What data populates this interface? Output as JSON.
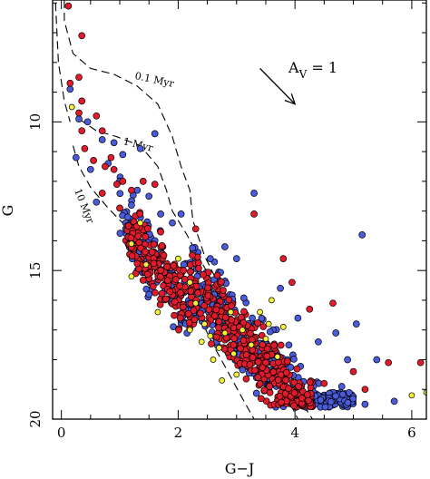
{
  "chart_data": {
    "type": "scatter",
    "xlabel": "G−J",
    "ylabel": "G",
    "xlim": [
      -0.15,
      6.25
    ],
    "ylim": [
      20,
      5.9
    ],
    "y_inverted": true,
    "x_ticks": [
      "0",
      "2",
      "4",
      "6"
    ],
    "y_ticks": [
      "10",
      "15",
      "20"
    ],
    "extinction_vector": {
      "label_main": "A",
      "label_sub": "V",
      "label_rest": " = 1",
      "from": [
        3.4,
        8.2
      ],
      "to": [
        4.0,
        9.4
      ]
    },
    "isochrones": [
      {
        "name": "0.1 Myr",
        "points": [
          [
            0.05,
            5.9
          ],
          [
            0.05,
            6.6
          ],
          [
            0.2,
            7.7
          ],
          [
            0.5,
            8.2
          ],
          [
            0.9,
            8.4
          ],
          [
            1.3,
            8.8
          ],
          [
            1.65,
            9.4
          ],
          [
            1.9,
            10.5
          ],
          [
            2.05,
            11.5
          ],
          [
            2.2,
            12.3
          ],
          [
            2.25,
            13.3
          ],
          [
            2.45,
            14.5
          ],
          [
            2.75,
            15.7
          ],
          [
            3.1,
            16.6
          ],
          [
            3.4,
            17.4
          ],
          [
            3.65,
            18.0
          ],
          [
            3.9,
            18.6
          ],
          [
            4.1,
            19.4
          ],
          [
            4.3,
            20.0
          ]
        ]
      },
      {
        "name": "1 Myr",
        "points": [
          [
            0.3,
            9.9
          ],
          [
            0.6,
            10.3
          ],
          [
            0.95,
            10.5
          ],
          [
            1.35,
            10.8
          ],
          [
            1.65,
            11.5
          ],
          [
            1.8,
            12.3
          ],
          [
            1.9,
            13.0
          ],
          [
            2.15,
            13.8
          ],
          [
            2.45,
            14.9
          ],
          [
            2.75,
            15.9
          ],
          [
            3.05,
            16.9
          ],
          [
            3.35,
            17.7
          ],
          [
            3.6,
            18.4
          ],
          [
            3.85,
            19.2
          ],
          [
            4.05,
            20.0
          ]
        ]
      },
      {
        "name": "10 Myr",
        "points": [
          [
            0.2,
            10.8
          ],
          [
            0.3,
            11.5
          ],
          [
            0.5,
            12.2
          ],
          [
            0.8,
            12.9
          ],
          [
            1.15,
            13.6
          ],
          [
            1.5,
            14.0
          ],
          [
            1.8,
            14.6
          ],
          [
            2.1,
            15.5
          ],
          [
            2.35,
            16.5
          ],
          [
            2.6,
            17.5
          ],
          [
            2.85,
            18.4
          ],
          [
            3.1,
            19.3
          ],
          [
            3.3,
            20.0
          ]
        ]
      },
      {
        "name": "",
        "points": [
          [
            -0.1,
            6.0
          ],
          [
            -0.05,
            8.0
          ],
          [
            0.05,
            9.3
          ],
          [
            0.15,
            10.0
          ]
        ]
      }
    ],
    "isochrone_labels": [
      {
        "text": "0.1 Myr",
        "x": 1.25,
        "y": 8.55,
        "angle": 12
      },
      {
        "text": "1 Myr",
        "x": 1.05,
        "y": 10.75,
        "angle": 14
      },
      {
        "text": "10 Myr",
        "x": 0.22,
        "y": 12.3,
        "angle": 68
      }
    ],
    "series": [
      {
        "name": "",
        "color": "#4a5bdc",
        "size": 7,
        "cluster": {
          "n": 520,
          "seed": 11,
          "xmin": 1.0,
          "xmax": 5.0,
          "yoff": [
            -0.9,
            2.3
          ]
        },
        "points": [
          [
            0.15,
            8.9
          ],
          [
            0.3,
            9.9
          ],
          [
            0.7,
            10.6
          ],
          [
            0.9,
            10.7
          ],
          [
            1.35,
            10.9
          ],
          [
            1.6,
            10.4
          ],
          [
            0.25,
            11.2
          ],
          [
            0.5,
            11.6
          ],
          [
            0.8,
            11.4
          ],
          [
            1.0,
            12.0
          ],
          [
            1.3,
            12.3
          ],
          [
            0.6,
            12.7
          ],
          [
            1.2,
            12.8
          ],
          [
            1.5,
            12.5
          ],
          [
            1.7,
            13.1
          ],
          [
            1.1,
            13.4
          ],
          [
            1.4,
            13.7
          ],
          [
            1.6,
            14.0
          ],
          [
            1.2,
            14.3
          ],
          [
            1.9,
            13.4
          ],
          [
            2.05,
            13.1
          ],
          [
            1.3,
            15.0
          ],
          [
            1.8,
            15.4
          ],
          [
            1.5,
            15.8
          ],
          [
            3.3,
            12.4
          ],
          [
            2.55,
            14.6
          ],
          [
            2.8,
            14.2
          ],
          [
            3.0,
            14.6
          ],
          [
            3.75,
            15.6
          ],
          [
            4.05,
            16.6
          ],
          [
            4.4,
            17.4
          ],
          [
            4.7,
            17.1
          ],
          [
            4.9,
            18.0
          ],
          [
            5.05,
            16.8
          ],
          [
            3.8,
            18.7
          ],
          [
            4.8,
            18.9
          ],
          [
            5.4,
            18.0
          ],
          [
            4.1,
            19.3
          ],
          [
            5.2,
            19.5
          ],
          [
            5.7,
            19.4
          ],
          [
            5.15,
            13.8
          ],
          [
            0.45,
            10.0
          ],
          [
            1.05,
            11.1
          ]
        ]
      },
      {
        "name": "",
        "color": "#e01c2c",
        "size": 7,
        "cluster": {
          "n": 560,
          "seed": 23,
          "xmin": 1.1,
          "xmax": 4.3,
          "yoff": [
            -0.5,
            2.2
          ]
        },
        "points": [
          [
            0.12,
            6.1
          ],
          [
            0.35,
            7.1
          ],
          [
            0.3,
            8.5
          ],
          [
            0.15,
            8.7
          ],
          [
            0.35,
            9.3
          ],
          [
            0.3,
            9.7
          ],
          [
            0.6,
            9.8
          ],
          [
            0.7,
            10.3
          ],
          [
            0.4,
            10.9
          ],
          [
            0.55,
            11.3
          ],
          [
            0.75,
            11.5
          ],
          [
            0.85,
            11.2
          ],
          [
            0.9,
            11.6
          ],
          [
            1.05,
            12.0
          ],
          [
            1.2,
            12.3
          ],
          [
            0.7,
            12.4
          ],
          [
            1.4,
            12.0
          ],
          [
            1.6,
            12.1
          ],
          [
            1.0,
            12.9
          ],
          [
            1.15,
            13.5
          ],
          [
            1.7,
            13.7
          ],
          [
            2.3,
            13.6
          ],
          [
            3.3,
            13.1
          ],
          [
            3.8,
            14.6
          ],
          [
            3.95,
            15.4
          ],
          [
            4.25,
            16.3
          ],
          [
            4.65,
            16.1
          ],
          [
            5.0,
            18.4
          ],
          [
            5.6,
            18.1
          ],
          [
            5.2,
            19.0
          ],
          [
            4.5,
            18.8
          ],
          [
            6.15,
            18.1
          ],
          [
            0.35,
            10.3
          ],
          [
            0.95,
            12.1
          ]
        ]
      },
      {
        "name": "",
        "color": "#f2f23a",
        "size": 6,
        "points": [
          [
            0.18,
            9.5
          ],
          [
            1.2,
            14.1
          ],
          [
            1.35,
            13.4
          ],
          [
            1.45,
            14.8
          ],
          [
            1.2,
            15.2
          ],
          [
            1.65,
            16.4
          ],
          [
            2.2,
            15.4
          ],
          [
            2.3,
            16.1
          ],
          [
            2.45,
            16.8
          ],
          [
            2.55,
            17.2
          ],
          [
            2.7,
            17.6
          ],
          [
            2.6,
            18.0
          ],
          [
            2.8,
            17.1
          ],
          [
            2.9,
            16.4
          ],
          [
            2.95,
            17.8
          ],
          [
            3.1,
            17.0
          ],
          [
            3.25,
            17.5
          ],
          [
            3.4,
            16.4
          ],
          [
            3.5,
            17.3
          ],
          [
            3.55,
            16.8
          ],
          [
            3.6,
            16.0
          ],
          [
            3.7,
            17.9
          ],
          [
            3.0,
            18.5
          ],
          [
            2.75,
            18.7
          ],
          [
            2.4,
            17.4
          ],
          [
            2.2,
            17.0
          ],
          [
            3.8,
            16.9
          ],
          [
            6.0,
            19.2
          ],
          [
            6.25,
            19.1
          ],
          [
            2.0,
            14.6
          ]
        ]
      }
    ]
  }
}
